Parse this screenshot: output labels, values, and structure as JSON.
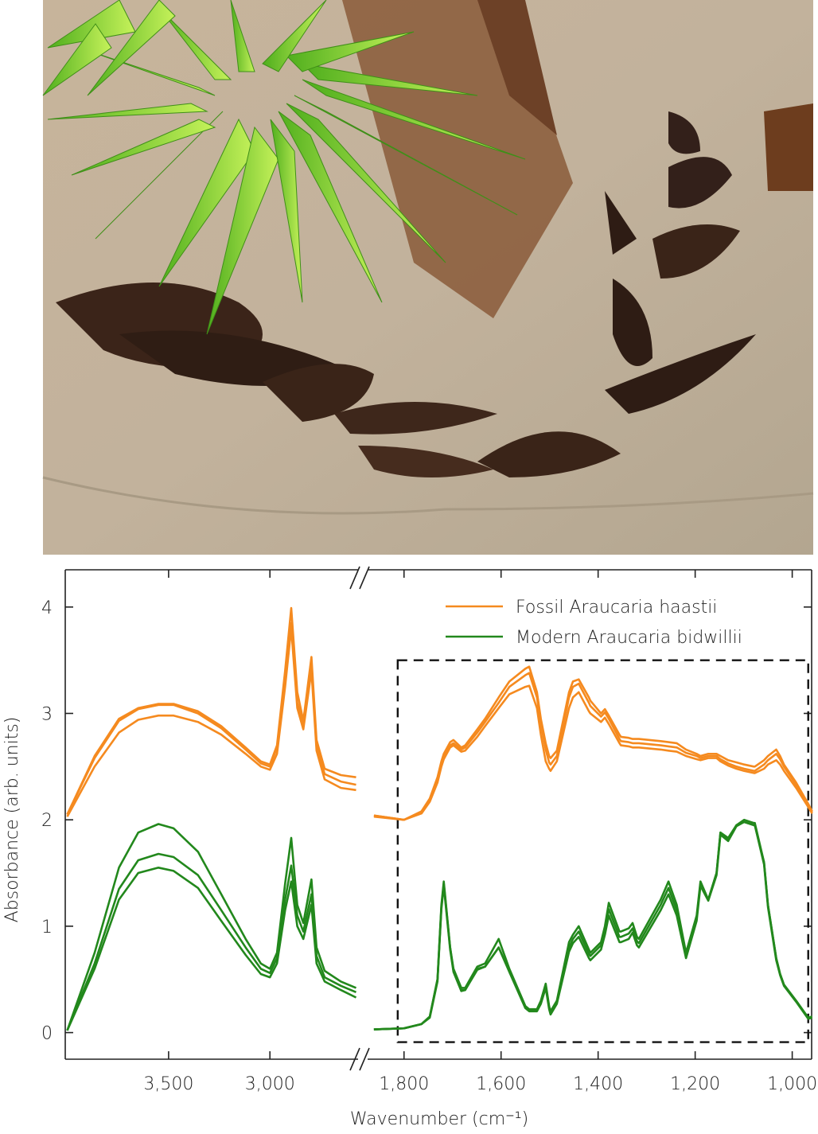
{
  "chart_data": [
    {
      "type": "line",
      "ylabel": "Absorbance (arb. units)",
      "xlabel": "Wavenumber (cm⁻¹)",
      "xlim": [
        4010,
        2565
      ],
      "ylim": [
        -0.25,
        4.35
      ],
      "xticks": [
        {
          "value": 3500,
          "label": "3,500"
        },
        {
          "value": 3000,
          "label": "3,000"
        }
      ],
      "yticks": [
        0,
        1,
        2,
        3,
        4
      ],
      "x": [
        4000,
        3865,
        3745,
        3650,
        3550,
        3475,
        3355,
        3240,
        3120,
        3045,
        3000,
        2965,
        2925,
        2895,
        2865,
        2835,
        2795,
        2770,
        2730,
        2650,
        2575
      ],
      "series": [
        {
          "color": "#f58a1f",
          "values": [
            [
              2.05,
              2.6,
              2.95,
              3.05,
              3.09,
              3.09,
              3.02,
              2.88,
              2.68,
              2.55,
              2.52,
              2.7,
              3.4,
              3.99,
              3.2,
              2.93,
              3.53,
              2.75,
              2.48,
              2.42,
              2.4
            ],
            [
              2.05,
              2.58,
              2.93,
              3.04,
              3.08,
              3.08,
              3.0,
              2.86,
              2.66,
              2.53,
              2.5,
              2.68,
              3.3,
              3.85,
              3.1,
              2.9,
              3.45,
              2.7,
              2.43,
              2.36,
              2.33
            ],
            [
              2.03,
              2.5,
              2.82,
              2.94,
              2.98,
              2.98,
              2.92,
              2.8,
              2.62,
              2.5,
              2.47,
              2.62,
              3.25,
              3.8,
              3.05,
              2.85,
              3.4,
              2.65,
              2.38,
              2.3,
              2.28
            ]
          ]
        },
        {
          "color": "#22881c",
          "values": [
            [
              0.02,
              0.75,
              1.55,
              1.88,
              1.96,
              1.92,
              1.7,
              1.3,
              0.88,
              0.65,
              0.6,
              0.75,
              1.4,
              1.83,
              1.2,
              1.03,
              1.44,
              0.8,
              0.58,
              0.48,
              0.42
            ],
            [
              0.02,
              0.65,
              1.35,
              1.62,
              1.68,
              1.65,
              1.48,
              1.15,
              0.8,
              0.6,
              0.56,
              0.7,
              1.25,
              1.57,
              1.1,
              0.95,
              1.3,
              0.72,
              0.52,
              0.44,
              0.38
            ],
            [
              0.02,
              0.6,
              1.25,
              1.5,
              1.55,
              1.52,
              1.36,
              1.05,
              0.73,
              0.55,
              0.52,
              0.65,
              1.15,
              1.42,
              1.0,
              0.88,
              1.2,
              0.65,
              0.48,
              0.4,
              0.33
            ]
          ]
        }
      ]
    },
    {
      "type": "line",
      "xlim": [
        1875,
        960
      ],
      "ylim": [
        -0.25,
        4.35
      ],
      "xticks": [
        {
          "value": 1800,
          "label": "1,800"
        },
        {
          "value": 1600,
          "label": "1,600"
        },
        {
          "value": 1400,
          "label": "1,400"
        },
        {
          "value": 1200,
          "label": "1,200"
        },
        {
          "value": 1000,
          "label": "1,000"
        }
      ],
      "legend": "upper right",
      "highlight_box": {
        "xlim": [
          1813,
          967
        ],
        "ylim": [
          -0.09,
          3.5
        ]
      },
      "x": [
        1862,
        1800,
        1764,
        1747,
        1731,
        1723,
        1718,
        1705,
        1698,
        1682,
        1674,
        1649,
        1633,
        1605,
        1583,
        1550,
        1542,
        1526,
        1518,
        1508,
        1501,
        1498,
        1485,
        1460,
        1452,
        1440,
        1419,
        1416,
        1394,
        1386,
        1378,
        1356,
        1353,
        1337,
        1329,
        1320,
        1316,
        1271,
        1255,
        1238,
        1219,
        1197,
        1189,
        1173,
        1156,
        1148,
        1132,
        1115,
        1099,
        1079,
        1077,
        1058,
        1050,
        1033,
        1025,
        1017,
        992,
        967,
        959
      ],
      "series": [
        {
          "name": "Fossil Araucaria haastii",
          "color": "#f58a1f",
          "values": [
            [
              2.04,
              2.0,
              2.08,
              2.2,
              2.4,
              2.55,
              2.62,
              2.73,
              2.75,
              2.68,
              2.7,
              2.85,
              2.95,
              3.15,
              3.3,
              3.42,
              3.44,
              3.2,
              2.95,
              2.72,
              2.6,
              2.58,
              2.65,
              3.2,
              3.3,
              3.32,
              3.15,
              3.12,
              3.0,
              3.04,
              2.98,
              2.8,
              2.78,
              2.77,
              2.76,
              2.76,
              2.76,
              2.74,
              2.73,
              2.72,
              2.66,
              2.62,
              2.6,
              2.62,
              2.62,
              2.6,
              2.56,
              2.54,
              2.52,
              2.5,
              2.5,
              2.56,
              2.6,
              2.66,
              2.6,
              2.52,
              2.35,
              2.15,
              2.08
            ],
            [
              2.04,
              2.0,
              2.07,
              2.19,
              2.38,
              2.52,
              2.6,
              2.7,
              2.72,
              2.66,
              2.68,
              2.82,
              2.92,
              3.1,
              3.25,
              3.36,
              3.38,
              3.15,
              2.9,
              2.66,
              2.54,
              2.52,
              2.6,
              3.15,
              3.25,
              3.28,
              3.1,
              3.07,
              2.97,
              3.01,
              2.95,
              2.76,
              2.74,
              2.73,
              2.72,
              2.72,
              2.72,
              2.7,
              2.69,
              2.68,
              2.63,
              2.6,
              2.58,
              2.6,
              2.6,
              2.57,
              2.53,
              2.5,
              2.48,
              2.46,
              2.46,
              2.52,
              2.56,
              2.62,
              2.57,
              2.5,
              2.33,
              2.13,
              2.07
            ],
            [
              2.03,
              2.0,
              2.06,
              2.17,
              2.35,
              2.5,
              2.57,
              2.68,
              2.7,
              2.64,
              2.65,
              2.78,
              2.88,
              3.05,
              3.18,
              3.25,
              3.26,
              3.05,
              2.8,
              2.55,
              2.48,
              2.46,
              2.55,
              3.05,
              3.15,
              3.2,
              3.02,
              3.0,
              2.92,
              2.96,
              2.9,
              2.72,
              2.7,
              2.69,
              2.68,
              2.68,
              2.68,
              2.66,
              2.65,
              2.64,
              2.6,
              2.57,
              2.56,
              2.58,
              2.58,
              2.55,
              2.51,
              2.48,
              2.46,
              2.44,
              2.44,
              2.48,
              2.52,
              2.56,
              2.52,
              2.46,
              2.3,
              2.12,
              2.06
            ]
          ]
        },
        {
          "name": "Modern Araucaria bidwillii",
          "color": "#22881c",
          "values": [
            [
              0.03,
              0.04,
              0.08,
              0.15,
              0.5,
              1.2,
              1.42,
              0.8,
              0.6,
              0.42,
              0.42,
              0.62,
              0.65,
              0.88,
              0.6,
              0.25,
              0.22,
              0.22,
              0.3,
              0.46,
              0.25,
              0.2,
              0.3,
              0.85,
              0.92,
              1.0,
              0.78,
              0.75,
              0.85,
              1.0,
              1.22,
              0.95,
              0.95,
              0.98,
              1.03,
              0.9,
              0.88,
              1.25,
              1.42,
              1.2,
              0.75,
              1.1,
              1.42,
              1.25,
              1.5,
              1.88,
              1.82,
              1.95,
              2.0,
              1.97,
              1.97,
              1.6,
              1.2,
              0.7,
              0.55,
              0.45,
              0.3,
              0.14,
              0.15
            ],
            [
              0.03,
              0.04,
              0.08,
              0.15,
              0.5,
              1.18,
              1.4,
              0.8,
              0.58,
              0.4,
              0.4,
              0.6,
              0.62,
              0.8,
              0.58,
              0.24,
              0.21,
              0.21,
              0.28,
              0.44,
              0.24,
              0.18,
              0.28,
              0.8,
              0.88,
              0.95,
              0.74,
              0.72,
              0.82,
              0.96,
              1.16,
              0.9,
              0.9,
              0.93,
              0.98,
              0.86,
              0.84,
              1.2,
              1.36,
              1.15,
              0.72,
              1.08,
              1.4,
              1.25,
              1.5,
              1.88,
              1.83,
              1.95,
              1.98,
              1.95,
              1.95,
              1.6,
              1.2,
              0.7,
              0.55,
              0.45,
              0.3,
              0.14,
              0.15
            ],
            [
              0.03,
              0.04,
              0.08,
              0.14,
              0.48,
              1.16,
              1.38,
              0.78,
              0.57,
              0.39,
              0.4,
              0.59,
              0.62,
              0.8,
              0.57,
              0.23,
              0.2,
              0.2,
              0.27,
              0.42,
              0.22,
              0.17,
              0.27,
              0.76,
              0.84,
              0.9,
              0.7,
              0.68,
              0.78,
              0.92,
              1.1,
              0.85,
              0.85,
              0.88,
              0.94,
              0.82,
              0.8,
              1.15,
              1.3,
              1.1,
              0.7,
              1.05,
              1.38,
              1.24,
              1.48,
              1.86,
              1.8,
              1.94,
              1.98,
              1.95,
              1.95,
              1.58,
              1.18,
              0.68,
              0.54,
              0.44,
              0.29,
              0.13,
              0.14
            ]
          ]
        }
      ]
    }
  ]
}
